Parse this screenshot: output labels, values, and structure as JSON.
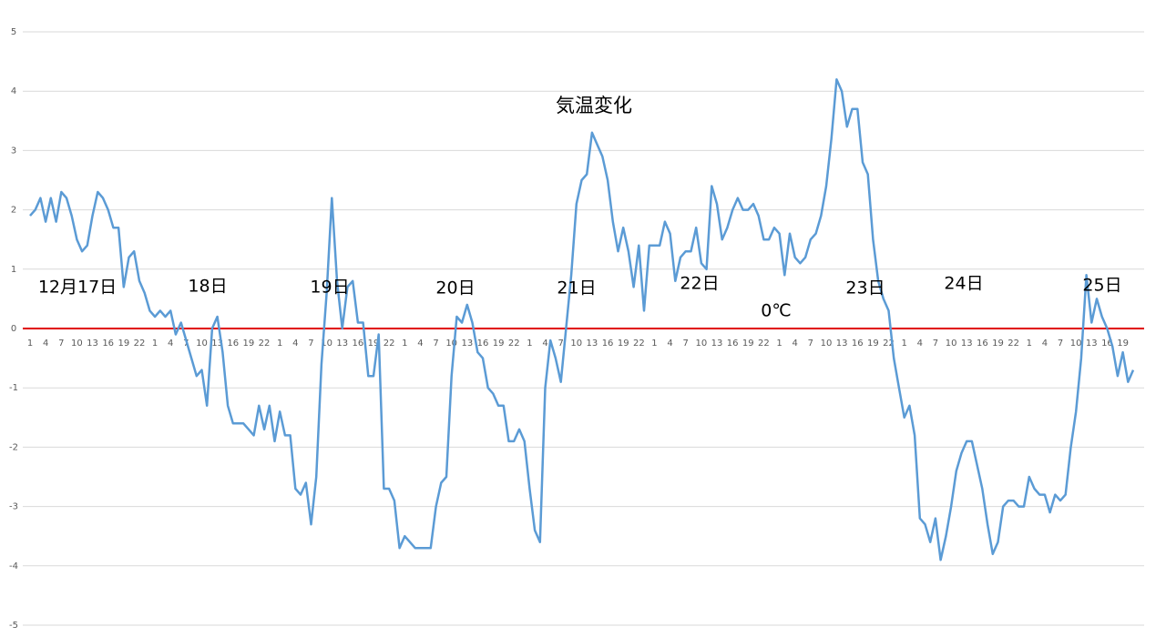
{
  "chart_data": {
    "type": "line",
    "title": "気温変化",
    "annotations": [
      "12月17日",
      "18日",
      "19日",
      "20日",
      "21日",
      "22日",
      "0℃",
      "23日",
      "24日",
      "25日"
    ],
    "categories": [
      1,
      null,
      null,
      4,
      null,
      null,
      7,
      null,
      null,
      10,
      null,
      null,
      13,
      null,
      null,
      16,
      null,
      null,
      19,
      null,
      null,
      22,
      null,
      null,
      1,
      null,
      null,
      4,
      null,
      null,
      7,
      null,
      null,
      10,
      null,
      null,
      13,
      null,
      null,
      16,
      null,
      null,
      19,
      null,
      null,
      22,
      null,
      null,
      1,
      null,
      null,
      4,
      null,
      null,
      7,
      null,
      null,
      10,
      null,
      null,
      13,
      null,
      null,
      16,
      null,
      null,
      19,
      null,
      null,
      22,
      null,
      null,
      1,
      null,
      null,
      4,
      null,
      null,
      7,
      null,
      null,
      10,
      null,
      null,
      13,
      null,
      null,
      16,
      null,
      null,
      19,
      null,
      null,
      22,
      null,
      null,
      1,
      null,
      null,
      4,
      null,
      null,
      7,
      null,
      null,
      10,
      null,
      null,
      13,
      null,
      null,
      16,
      null,
      null,
      19,
      null,
      null,
      22,
      null,
      null,
      1,
      null,
      null,
      4,
      null,
      null,
      7,
      null,
      null,
      10,
      null,
      null,
      13,
      null,
      null,
      16,
      null,
      null,
      19,
      null,
      null,
      22,
      null,
      null,
      1,
      null,
      null,
      4,
      null,
      null,
      7,
      null,
      null,
      10,
      null,
      null,
      13,
      null,
      null,
      16,
      null,
      null,
      19,
      null,
      null,
      22,
      null,
      null,
      1,
      null,
      null,
      4,
      null,
      null,
      7,
      null,
      null,
      10,
      null,
      null,
      13,
      null,
      null,
      16,
      null,
      null,
      19,
      null,
      null,
      22,
      null,
      null,
      1,
      null,
      null,
      4,
      null,
      null,
      7,
      null,
      null,
      10,
      null,
      null,
      13,
      null,
      null,
      16,
      null,
      null,
      19,
      null,
      null
    ],
    "series": [
      {
        "color": "#5b9bd5",
        "values": [
          1.9,
          2.0,
          2.2,
          1.8,
          2.2,
          1.8,
          2.3,
          2.2,
          1.9,
          1.5,
          1.3,
          1.4,
          1.9,
          2.3,
          2.2,
          2.0,
          1.7,
          1.7,
          0.7,
          1.2,
          1.3,
          0.8,
          0.6,
          0.3,
          0.2,
          0.3,
          0.2,
          0.3,
          -0.1,
          0.1,
          -0.2,
          -0.5,
          -0.8,
          -0.7,
          -1.3,
          0.0,
          0.2,
          -0.4,
          -1.3,
          -1.6,
          -1.6,
          -1.6,
          -1.7,
          -1.8,
          -1.3,
          -1.7,
          -1.3,
          -1.9,
          -1.4,
          -1.8,
          -1.8,
          -2.7,
          -2.8,
          -2.6,
          -3.3,
          -2.5,
          -0.6,
          0.6,
          2.2,
          0.8,
          0.0,
          0.7,
          0.8,
          0.1,
          0.1,
          -0.8,
          -0.8,
          -0.1,
          -2.7,
          -2.7,
          -2.9,
          -3.7,
          -3.5,
          -3.6,
          -3.7,
          -3.7,
          -3.7,
          -3.7,
          -3.0,
          -2.6,
          -2.5,
          -0.8,
          0.2,
          0.1,
          0.4,
          0.1,
          -0.4,
          -0.5,
          -1.0,
          -1.1,
          -1.3,
          -1.3,
          -1.9,
          -1.9,
          -1.7,
          -1.9,
          -2.7,
          -3.4,
          -3.6,
          -1.0,
          -0.2,
          -0.5,
          -0.9,
          0.0,
          0.9,
          2.1,
          2.5,
          2.6,
          3.3,
          3.1,
          2.9,
          2.5,
          1.8,
          1.3,
          1.7,
          1.3,
          0.7,
          1.4,
          0.3,
          1.4,
          1.4,
          1.4,
          1.8,
          1.6,
          0.8,
          1.2,
          1.3,
          1.3,
          1.7,
          1.1,
          1.0,
          2.4,
          2.1,
          1.5,
          1.7,
          2.0,
          2.2,
          2.0,
          2.0,
          2.1,
          1.9,
          1.5,
          1.5,
          1.7,
          1.6,
          0.9,
          1.6,
          1.2,
          1.1,
          1.2,
          1.5,
          1.6,
          1.9,
          2.4,
          3.2,
          4.2,
          4.0,
          3.4,
          3.7,
          3.7,
          2.8,
          2.6,
          1.5,
          0.8,
          0.5,
          0.3,
          -0.5,
          -1.0,
          -1.5,
          -1.3,
          -1.8,
          -3.2,
          -3.3,
          -3.6,
          -3.2,
          -3.9,
          -3.5,
          -3.0,
          -2.4,
          -2.1,
          -1.9,
          -1.9,
          -2.3,
          -2.7,
          -3.3,
          -3.8,
          -3.6,
          -3.0,
          -2.9,
          -2.9,
          -3.0,
          -3.0,
          -2.5,
          -2.7,
          -2.8,
          -2.8,
          -3.1,
          -2.8,
          -2.9,
          -2.8,
          -2.0,
          -1.4,
          -0.5,
          0.9,
          0.1,
          0.5,
          0.2,
          0.0,
          -0.3,
          -0.8,
          -0.4,
          -0.9,
          -0.7
        ]
      }
    ],
    "reference_line": {
      "value": 0,
      "color": "#e00000"
    },
    "ylim": [
      -5,
      5
    ],
    "yticks": [
      -5,
      -4,
      -3,
      -2,
      -1,
      0,
      1,
      2,
      3,
      4,
      5
    ],
    "grid": true
  }
}
